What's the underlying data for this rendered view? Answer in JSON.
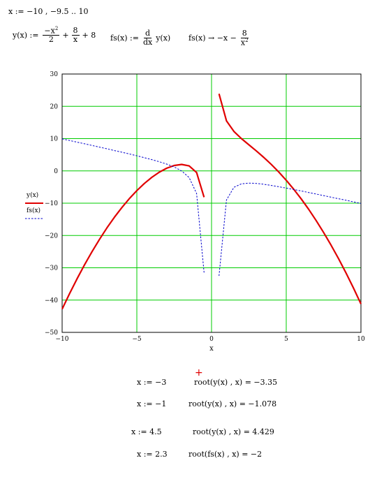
{
  "range_def": "x := −10 , −9.5 .. 10",
  "def_y": {
    "lhs": "y(x) :=",
    "t1_num": "−x",
    "t1_exp": "2",
    "t1_den": "2",
    "plus1": "+",
    "t2_num": "8",
    "t2_den": "x",
    "tail": "+ 8"
  },
  "def_fs": {
    "lhs": "fs(x) :=",
    "d_num": "d",
    "d_den": "dx",
    "tail": "y(x)"
  },
  "sym_fs": {
    "lhs": "fs(x) → −x −",
    "num": "8",
    "den": "x",
    "den_exp": "2"
  },
  "chart_data": {
    "type": "line",
    "xlabel": "x",
    "xlim": [
      -10,
      10
    ],
    "ylim": [
      -50,
      30
    ],
    "grid": true,
    "x_ticks": [
      -10,
      -5,
      0,
      5,
      10
    ],
    "y_ticks": [
      -50,
      -40,
      -30,
      -20,
      -10,
      0,
      10,
      20,
      30
    ],
    "x_tick_labels": [
      "−10",
      "−5",
      "0",
      "5",
      "10"
    ],
    "y_tick_labels": [
      "−50",
      "−40",
      "−30",
      "−20",
      "−10",
      "0",
      "10",
      "20",
      "30"
    ],
    "legend": [
      {
        "name": "y(x)",
        "style": "solid",
        "color": "#e00000"
      },
      {
        "name": "fs(x)",
        "style": "dashed",
        "color": "#0000cc"
      }
    ],
    "series": [
      {
        "name": "y(x)",
        "color": "#e00000",
        "segments": [
          {
            "x": [
              -10,
              -9.5,
              -9,
              -8.5,
              -8,
              -7.5,
              -7,
              -6.5,
              -6,
              -5.5,
              -5,
              -4.5,
              -4,
              -3.5,
              -3,
              -2.5,
              -2,
              -1.5,
              -1,
              -0.5
            ],
            "y": [
              -42.8,
              -37.97,
              -33.39,
              -29.07,
              -25,
              -21.19,
              -17.64,
              -14.35,
              -11.33,
              -8.58,
              -6.1,
              -3.9,
              -2,
              -0.41,
              0.83,
              1.68,
              2,
              1.54,
              -0.5,
              -8.13
            ]
          },
          {
            "x": [
              0.5,
              1,
              1.5,
              2,
              2.5,
              3,
              3.5,
              4,
              4.5,
              5,
              5.5,
              6,
              6.5,
              7,
              7.5,
              8,
              8.5,
              9,
              9.5,
              10
            ],
            "y": [
              23.88,
              15.5,
              12.21,
              10,
              8.08,
              6.17,
              4.16,
              2,
              -0.35,
              -2.9,
              -5.67,
              -8.67,
              -11.89,
              -15.36,
              -19.06,
              -23,
              -27.17,
              -31.61,
              -36.28,
              -41.2
            ]
          }
        ]
      },
      {
        "name": "fs(x)",
        "color": "#0000cc",
        "segments": [
          {
            "x": [
              -10,
              -9.5,
              -9,
              -8.5,
              -8,
              -7.5,
              -7,
              -6.5,
              -6,
              -5.5,
              -5,
              -4.5,
              -4,
              -3.5,
              -3,
              -2.5,
              -2,
              -1.5,
              -1,
              -0.5
            ],
            "y": [
              9.92,
              9.41,
              8.9,
              8.39,
              7.88,
              7.36,
              6.84,
              6.31,
              5.78,
              5.24,
              4.68,
              4.1,
              3.5,
              2.85,
              2.11,
              1.22,
              0,
              -2.06,
              -7,
              -31.5
            ]
          },
          {
            "x": [
              0.5,
              1,
              1.5,
              2,
              2.5,
              3,
              3.5,
              4,
              4.5,
              5,
              5.5,
              6,
              6.5,
              7,
              7.5,
              8,
              8.5,
              9,
              9.5,
              10
            ],
            "y": [
              -32.5,
              -9,
              -5.06,
              -4,
              -3.78,
              -3.89,
              -4.15,
              -4.5,
              -4.9,
              -5.32,
              -5.76,
              -6.22,
              -6.69,
              -7.16,
              -7.64,
              -8.13,
              -8.61,
              -9.1,
              -9.59,
              -10.08
            ]
          }
        ]
      }
    ]
  },
  "roots": [
    {
      "guess": "x := −3",
      "expr": "root(y(x) , x) = −3.35"
    },
    {
      "guess": "x := −1",
      "expr": "root(y(x) , x) = −1.078"
    },
    {
      "guess": "x := 4.5",
      "expr": "root(y(x) , x) = 4.429"
    },
    {
      "guess": "x := 2.3",
      "expr": "root(fs(x) , x) = −2"
    }
  ],
  "cursor_symbol": "+"
}
